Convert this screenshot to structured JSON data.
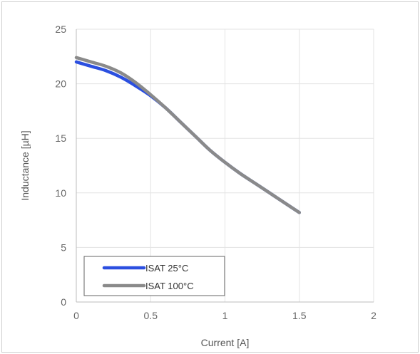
{
  "chart_data": {
    "type": "line",
    "xlabel": "Current [A]",
    "ylabel": "Inductance [µH]",
    "xlim": [
      0,
      2
    ],
    "ylim": [
      0,
      25
    ],
    "xticks": [
      "0",
      "0.5",
      "1",
      "1.5",
      "2"
    ],
    "yticks": [
      "0",
      "5",
      "10",
      "15",
      "20",
      "25"
    ],
    "grid": true,
    "legend_position": "bottom-left",
    "series": [
      {
        "name": "ISAT 25°C",
        "color": "#2b4fe0",
        "x": [
          0,
          0.1,
          0.2,
          0.3,
          0.4,
          0.5,
          0.6,
          0.7,
          0.8,
          0.9,
          1.0,
          1.1,
          1.2,
          1.3,
          1.4,
          1.5
        ],
        "y": [
          22.0,
          21.6,
          21.2,
          20.6,
          19.8,
          18.9,
          17.8,
          16.5,
          15.2,
          13.9,
          12.8,
          11.8,
          10.9,
          10.0,
          9.1,
          8.2
        ]
      },
      {
        "name": "ISAT 100°C",
        "color": "#8a8a8a",
        "x": [
          0,
          0.1,
          0.2,
          0.3,
          0.4,
          0.5,
          0.6,
          0.7,
          0.8,
          0.9,
          1.0,
          1.1,
          1.2,
          1.3,
          1.4,
          1.5
        ],
        "y": [
          22.4,
          22.0,
          21.6,
          21.0,
          20.1,
          19.0,
          17.8,
          16.5,
          15.2,
          13.9,
          12.8,
          11.8,
          10.9,
          10.0,
          9.1,
          8.2
        ]
      }
    ]
  }
}
